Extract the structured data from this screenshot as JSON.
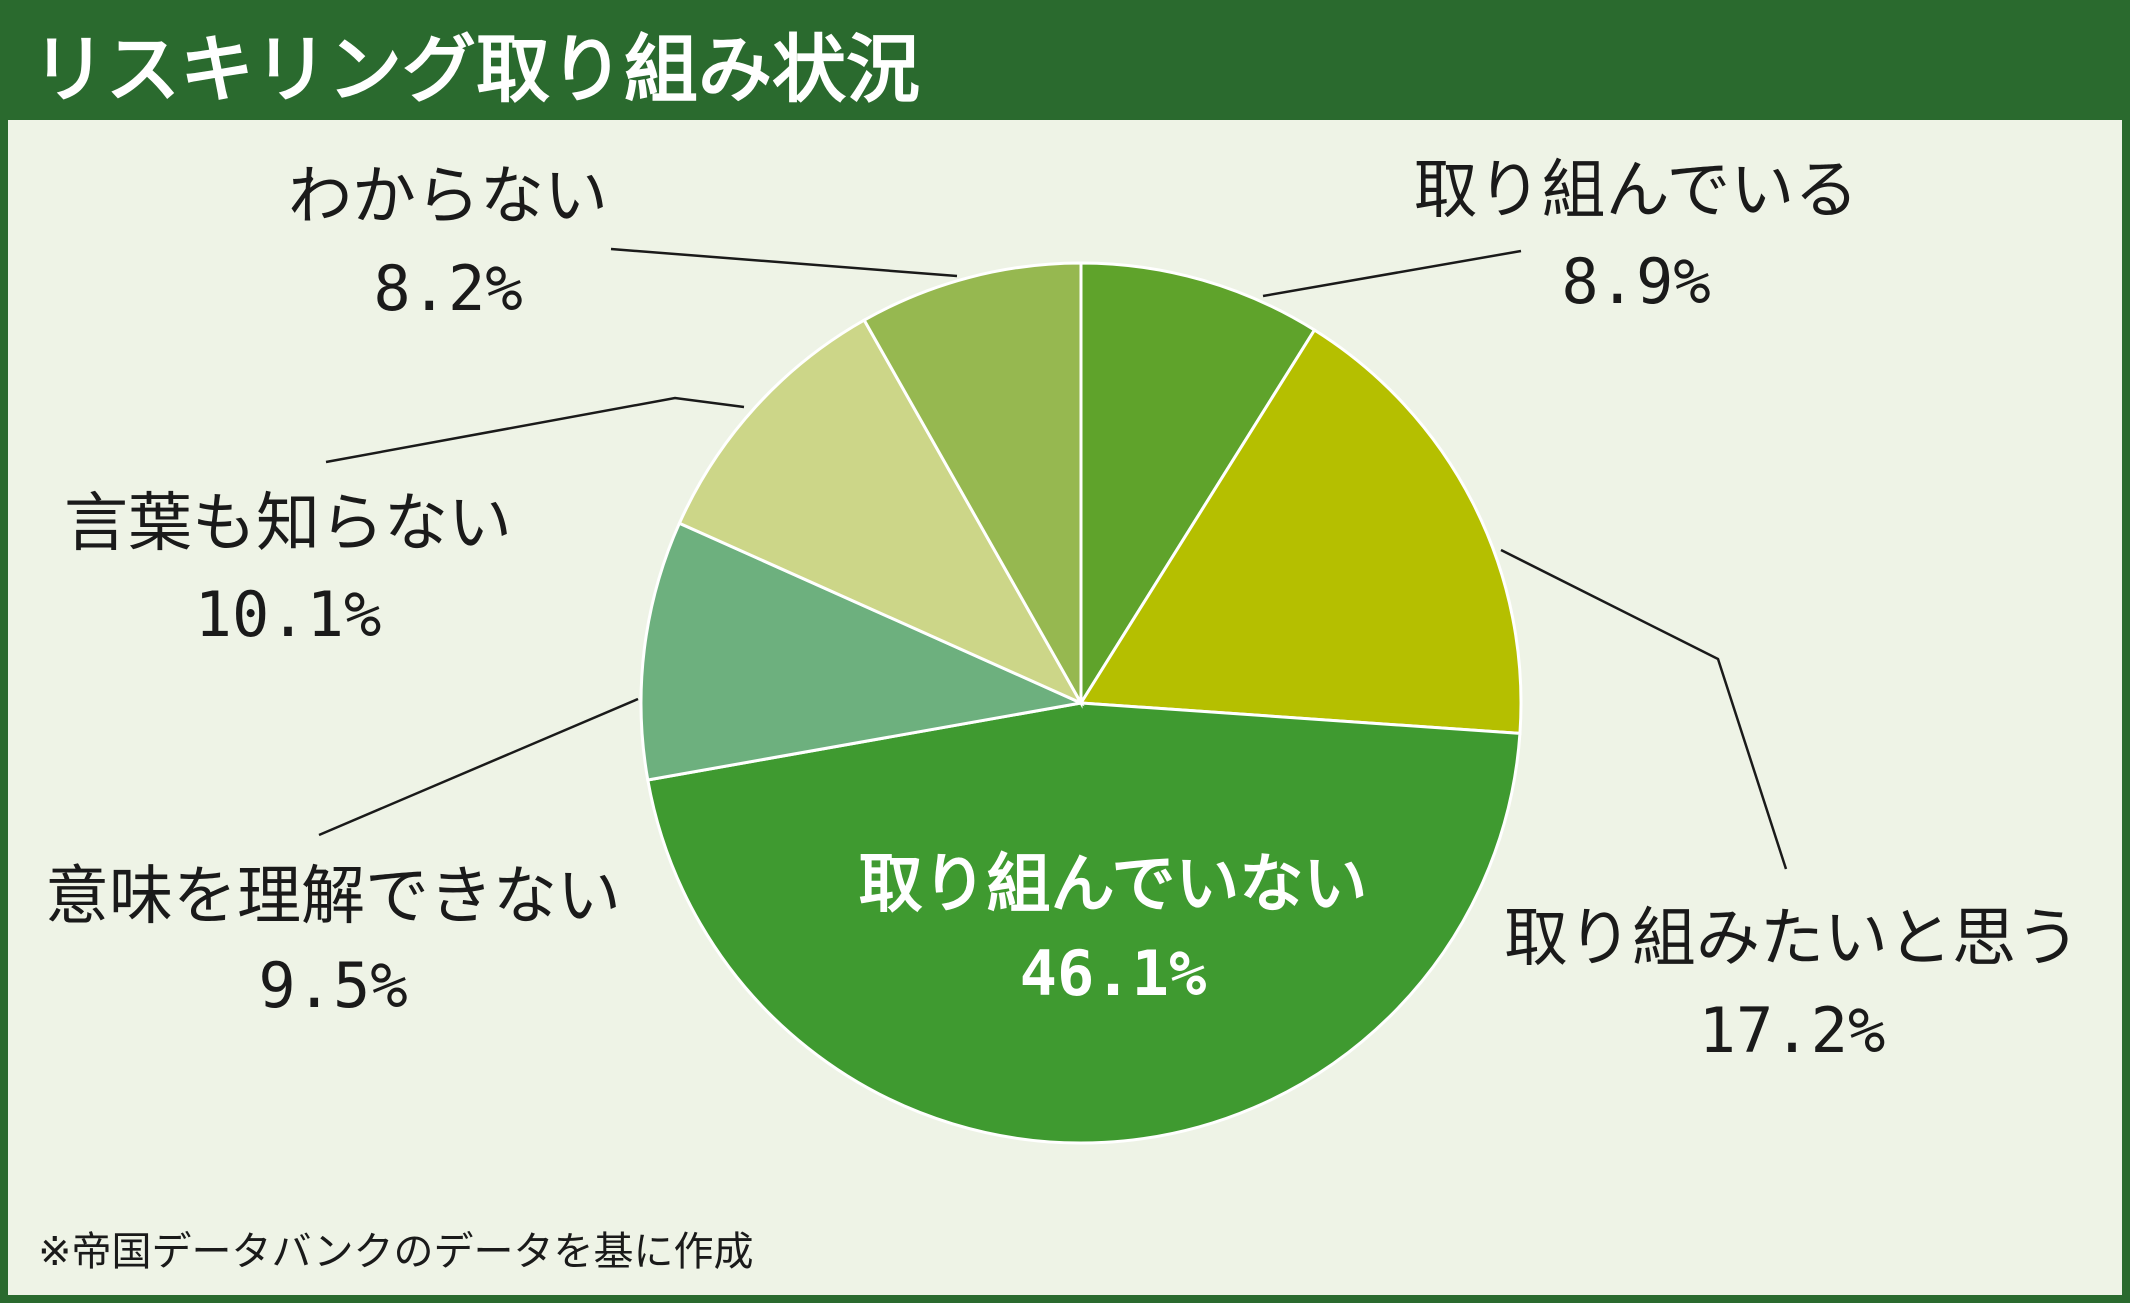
{
  "title": "リスキリング取り組み状況",
  "footnote": "※帝国データバンクのデータを基に作成",
  "colors": {
    "frame": "#2a6a2e",
    "background": "#eef3e6"
  },
  "chart_data": {
    "type": "pie",
    "title": "リスキリング取り組み状況",
    "start": "top",
    "direction": "clockwise",
    "slices": [
      {
        "label": "取り組んでいる",
        "value": 8.9,
        "value_label": "8.9%",
        "color": "#5fa32b"
      },
      {
        "label": "取り組みたいと思う",
        "value": 17.2,
        "value_label": "17.2%",
        "color": "#b5bf00"
      },
      {
        "label": "取り組んでいない",
        "value": 46.1,
        "value_label": "46.1%",
        "color": "#3f9a30"
      },
      {
        "label": "意味を理解できない",
        "value": 9.5,
        "value_label": "9.5%",
        "color": "#6db07e"
      },
      {
        "label": "言葉も知らない",
        "value": 10.1,
        "value_label": "10.1%",
        "color": "#ccd688"
      },
      {
        "label": "わからない",
        "value": 8.2,
        "value_label": "8.2%",
        "color": "#96b850"
      }
    ]
  }
}
